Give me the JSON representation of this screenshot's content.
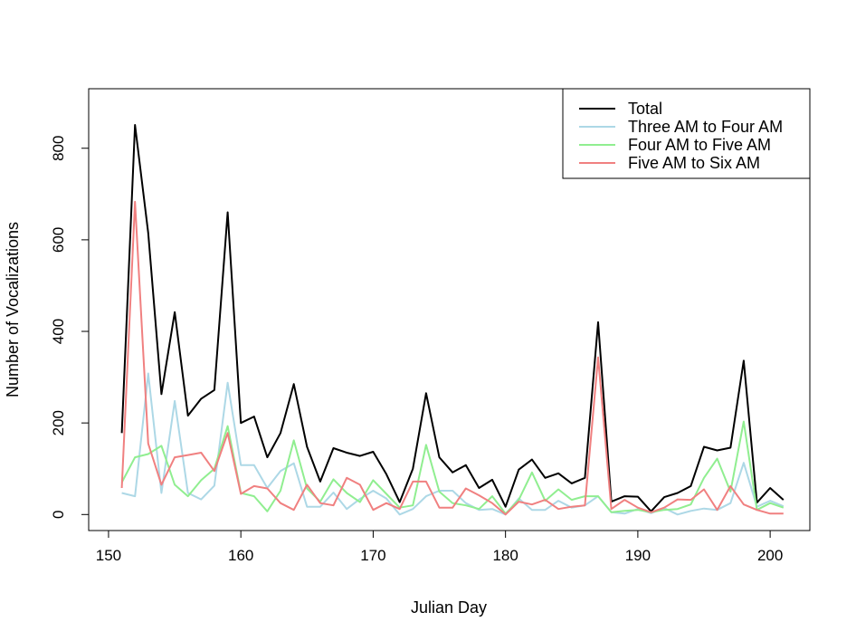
{
  "chart_data": {
    "type": "line",
    "xlabel": "Julian Day",
    "ylabel": "Number of Vocalizations",
    "xlim": [
      148.5,
      203
    ],
    "ylim": [
      -35,
      930
    ],
    "x_ticks": [
      "150",
      "160",
      "170",
      "180",
      "190",
      "200"
    ],
    "y_ticks": [
      "0",
      "200",
      "400",
      "600",
      "800"
    ],
    "x": [
      151,
      152,
      153,
      154,
      155,
      156,
      157,
      158,
      159,
      160,
      161,
      162,
      163,
      164,
      165,
      166,
      167,
      168,
      169,
      170,
      171,
      172,
      173,
      174,
      175,
      176,
      177,
      178,
      179,
      180,
      181,
      182,
      183,
      184,
      185,
      186,
      187,
      188,
      189,
      190,
      191,
      192,
      193,
      194,
      195,
      196,
      197,
      198,
      199,
      200,
      201
    ],
    "legend_position": "top-right",
    "series": [
      {
        "name": "Total",
        "color": "#000000",
        "values": [
          178,
          851,
          615,
          263,
          442,
          216,
          253,
          272,
          660,
          200,
          214,
          125,
          178,
          285,
          148,
          72,
          145,
          135,
          128,
          137,
          88,
          27,
          100,
          265,
          125,
          92,
          108,
          58,
          76,
          17,
          98,
          120,
          80,
          90,
          68,
          80,
          420,
          28,
          40,
          39,
          7,
          38,
          47,
          62,
          148,
          140,
          146,
          336,
          26,
          58,
          32
        ]
      },
      {
        "name": "Three AM to Four AM",
        "color": "#add8e6",
        "values": [
          47,
          40,
          308,
          47,
          248,
          47,
          33,
          63,
          288,
          108,
          108,
          58,
          95,
          112,
          17,
          17,
          48,
          12,
          34,
          52,
          35,
          0,
          12,
          40,
          52,
          52,
          25,
          10,
          12,
          0,
          35,
          10,
          10,
          30,
          15,
          20,
          40,
          5,
          2,
          12,
          3,
          14,
          0,
          8,
          13,
          10,
          25,
          113,
          17,
          30,
          18
        ]
      },
      {
        "name": "Four AM to Five AM",
        "color": "#90ee90",
        "values": [
          70,
          125,
          132,
          150,
          65,
          40,
          75,
          100,
          193,
          47,
          40,
          7,
          52,
          162,
          57,
          28,
          77,
          47,
          27,
          75,
          45,
          15,
          20,
          152,
          50,
          25,
          20,
          12,
          40,
          2,
          32,
          92,
          30,
          55,
          32,
          40,
          40,
          5,
          8,
          10,
          5,
          10,
          12,
          22,
          80,
          122,
          50,
          203,
          10,
          25,
          15
        ]
      },
      {
        "name": "Five AM to Six AM",
        "color": "#f08080",
        "values": [
          58,
          683,
          155,
          65,
          125,
          130,
          135,
          95,
          178,
          45,
          62,
          57,
          25,
          10,
          65,
          25,
          20,
          80,
          65,
          10,
          25,
          12,
          72,
          72,
          15,
          15,
          57,
          42,
          25,
          0,
          28,
          22,
          32,
          12,
          17,
          20,
          343,
          12,
          32,
          15,
          5,
          15,
          33,
          32,
          55,
          10,
          62,
          22,
          10,
          2,
          2
        ]
      }
    ]
  }
}
